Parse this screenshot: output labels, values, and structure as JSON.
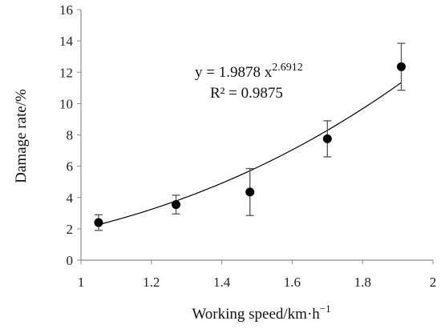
{
  "chart_data": {
    "type": "scatter",
    "title": "",
    "xlabel": "Working speed/km·h",
    "xlabel_sup": "−1",
    "ylabel": "Damage rate/%",
    "xlim": [
      1,
      2
    ],
    "ylim": [
      0,
      16
    ],
    "x_ticks": [
      "1",
      "1.2",
      "1.4",
      "1.6",
      "1.8",
      "2"
    ],
    "y_ticks": [
      "0",
      "2",
      "4",
      "6",
      "8",
      "10",
      "12",
      "14",
      "16"
    ],
    "x_tick_values": [
      1,
      1.2,
      1.4,
      1.6,
      1.8,
      2
    ],
    "y_tick_values": [
      0,
      2,
      4,
      6,
      8,
      10,
      12,
      14,
      16
    ],
    "points": [
      {
        "x": 1.05,
        "y": 2.4,
        "err": 0.5
      },
      {
        "x": 1.27,
        "y": 3.55,
        "err": 0.6
      },
      {
        "x": 1.48,
        "y": 4.35,
        "err": 1.5
      },
      {
        "x": 1.7,
        "y": 7.75,
        "err": 1.15
      },
      {
        "x": 1.91,
        "y": 12.35,
        "err": 1.5
      }
    ],
    "fit": {
      "type": "power",
      "a": 1.9878,
      "b": 2.6912,
      "x_from": 1.05,
      "x_to": 1.91,
      "eq_prefix": "y = 1.9878 x",
      "eq_exponent": "2.6912",
      "r2_text": "R² = 0.9875"
    },
    "grid": false,
    "legend": "none"
  }
}
